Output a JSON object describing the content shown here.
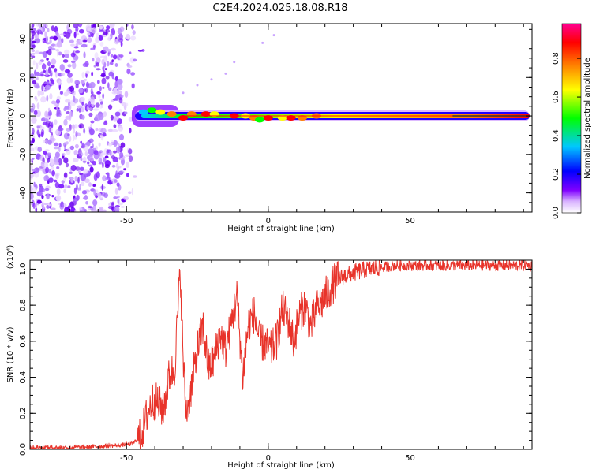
{
  "title": "C2E4.2024.025.18.08.R18",
  "chart_data": [
    {
      "type": "heatmap",
      "panel": "spectrogram",
      "xlabel": "Height of straight line (km)",
      "ylabel": "Frequency (Hz)",
      "xlim": [
        -84,
        93
      ],
      "ylim": [
        -50,
        48
      ],
      "xticks": [
        "-50",
        "0",
        "50"
      ],
      "yticks": [
        "-40",
        "-20",
        "0",
        "20",
        "40"
      ],
      "colorbar": {
        "label": "Normalized spectral amplitude",
        "range": [
          0,
          1
        ],
        "ticks": [
          "0.0",
          "0.2",
          "0.4",
          "0.6",
          "0.8"
        ],
        "colors": [
          "#ffffff",
          "#7f00ff",
          "#0000ff",
          "#00c8ff",
          "#00ff00",
          "#ffff00",
          "#ff8000",
          "#ff0000",
          "#ff0080"
        ]
      },
      "features": {
        "noise_region_x": [
          -84,
          -47
        ],
        "signal_line_y": 0,
        "signal_onset_x": -47
      }
    },
    {
      "type": "line",
      "panel": "snr",
      "xlabel": "Height of straight line (km)",
      "ylabel": "SNR (10 * v/v)",
      "y_multiplier": "(x10⁴)",
      "xlim": [
        -84,
        93
      ],
      "ylim": [
        0,
        1.05
      ],
      "xticks": [
        "-50",
        "0",
        "50"
      ],
      "yticks": [
        "0.0",
        "0.2",
        "0.4",
        "0.6",
        "0.8",
        "1.0"
      ],
      "color": "#e8332a",
      "series": [
        {
          "name": "SNR",
          "x": [
            -84,
            -70,
            -55,
            -48,
            -45,
            -43,
            -41,
            -39,
            -37,
            -35,
            -33,
            -31,
            -30,
            -29,
            -27,
            -25,
            -23,
            -21,
            -19,
            -17,
            -15,
            -13,
            -11,
            -9,
            -7,
            -5,
            -3,
            -1,
            1,
            3,
            5,
            7,
            9,
            11,
            13,
            15,
            17,
            19,
            21,
            23,
            25,
            30,
            35,
            40,
            45,
            50,
            55,
            60,
            70,
            80,
            93
          ],
          "values": [
            0.01,
            0.01,
            0.02,
            0.03,
            0.07,
            0.18,
            0.27,
            0.26,
            0.22,
            0.4,
            0.45,
            1.0,
            0.5,
            0.2,
            0.35,
            0.55,
            0.68,
            0.45,
            0.5,
            0.65,
            0.55,
            0.7,
            0.85,
            0.4,
            0.7,
            0.75,
            0.6,
            0.58,
            0.55,
            0.6,
            0.78,
            0.72,
            0.6,
            0.75,
            0.8,
            0.68,
            0.78,
            0.82,
            0.87,
            0.92,
            0.95,
            0.98,
            1.0,
            1.01,
            1.02,
            1.02,
            1.02,
            1.02,
            1.02,
            1.02,
            1.02
          ]
        }
      ]
    }
  ]
}
